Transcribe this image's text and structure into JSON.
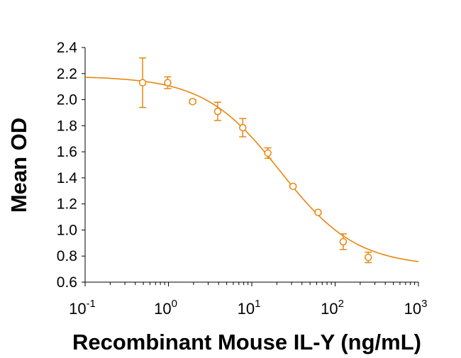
{
  "chart_data": {
    "type": "scatter",
    "title": "",
    "xlabel": "Recombinant Mouse IL-Y (ng/mL)",
    "ylabel": "Mean OD",
    "x_scale": "log",
    "xlim": [
      0.1,
      1000
    ],
    "ylim": [
      0.6,
      2.4
    ],
    "x_ticks": [
      {
        "base": "10",
        "exp": "-1"
      },
      {
        "base": "10",
        "exp": "0"
      },
      {
        "base": "10",
        "exp": "1"
      },
      {
        "base": "10",
        "exp": "2"
      },
      {
        "base": "10",
        "exp": "3"
      }
    ],
    "y_ticks": [
      "0.6",
      "0.8",
      "1.0",
      "1.2",
      "1.4",
      "1.6",
      "1.8",
      "2.0",
      "2.2",
      "2.4"
    ],
    "grid": false,
    "legend": "none",
    "color": "#E8870E",
    "points": [
      {
        "x": 0.49,
        "y": 2.13,
        "err": 0.19
      },
      {
        "x": 0.98,
        "y": 2.13,
        "err": 0.045
      },
      {
        "x": 1.95,
        "y": 1.985,
        "err": 0.015
      },
      {
        "x": 3.9,
        "y": 1.91,
        "err": 0.07
      },
      {
        "x": 7.8,
        "y": 1.785,
        "err": 0.07
      },
      {
        "x": 15.6,
        "y": 1.59,
        "err": 0.04
      },
      {
        "x": 31.25,
        "y": 1.335,
        "err": 0.01
      },
      {
        "x": 62.5,
        "y": 1.135,
        "err": 0.01
      },
      {
        "x": 125,
        "y": 0.91,
        "err": 0.06
      },
      {
        "x": 250,
        "y": 0.79,
        "err": 0.04
      }
    ],
    "fit": {
      "model": "4PL",
      "top": 2.18,
      "bottom": 0.72,
      "ec50": 22,
      "hill": 0.95
    }
  }
}
